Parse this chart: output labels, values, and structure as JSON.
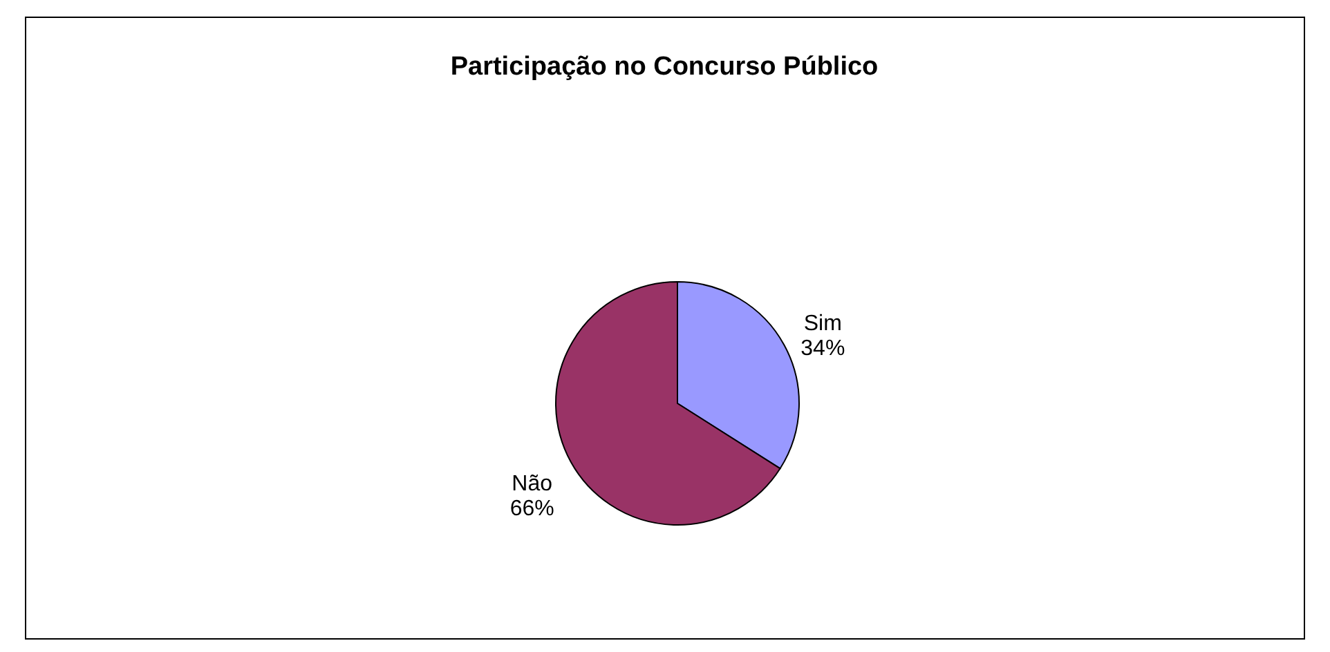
{
  "chart_data": {
    "type": "pie",
    "title": "Participação no Concurso Público",
    "categories": [
      "Sim",
      "Não"
    ],
    "values": [
      34,
      66
    ],
    "colors": [
      "#9999ff",
      "#993366"
    ],
    "value_labels": [
      "34%",
      "66%"
    ],
    "legend": false
  }
}
